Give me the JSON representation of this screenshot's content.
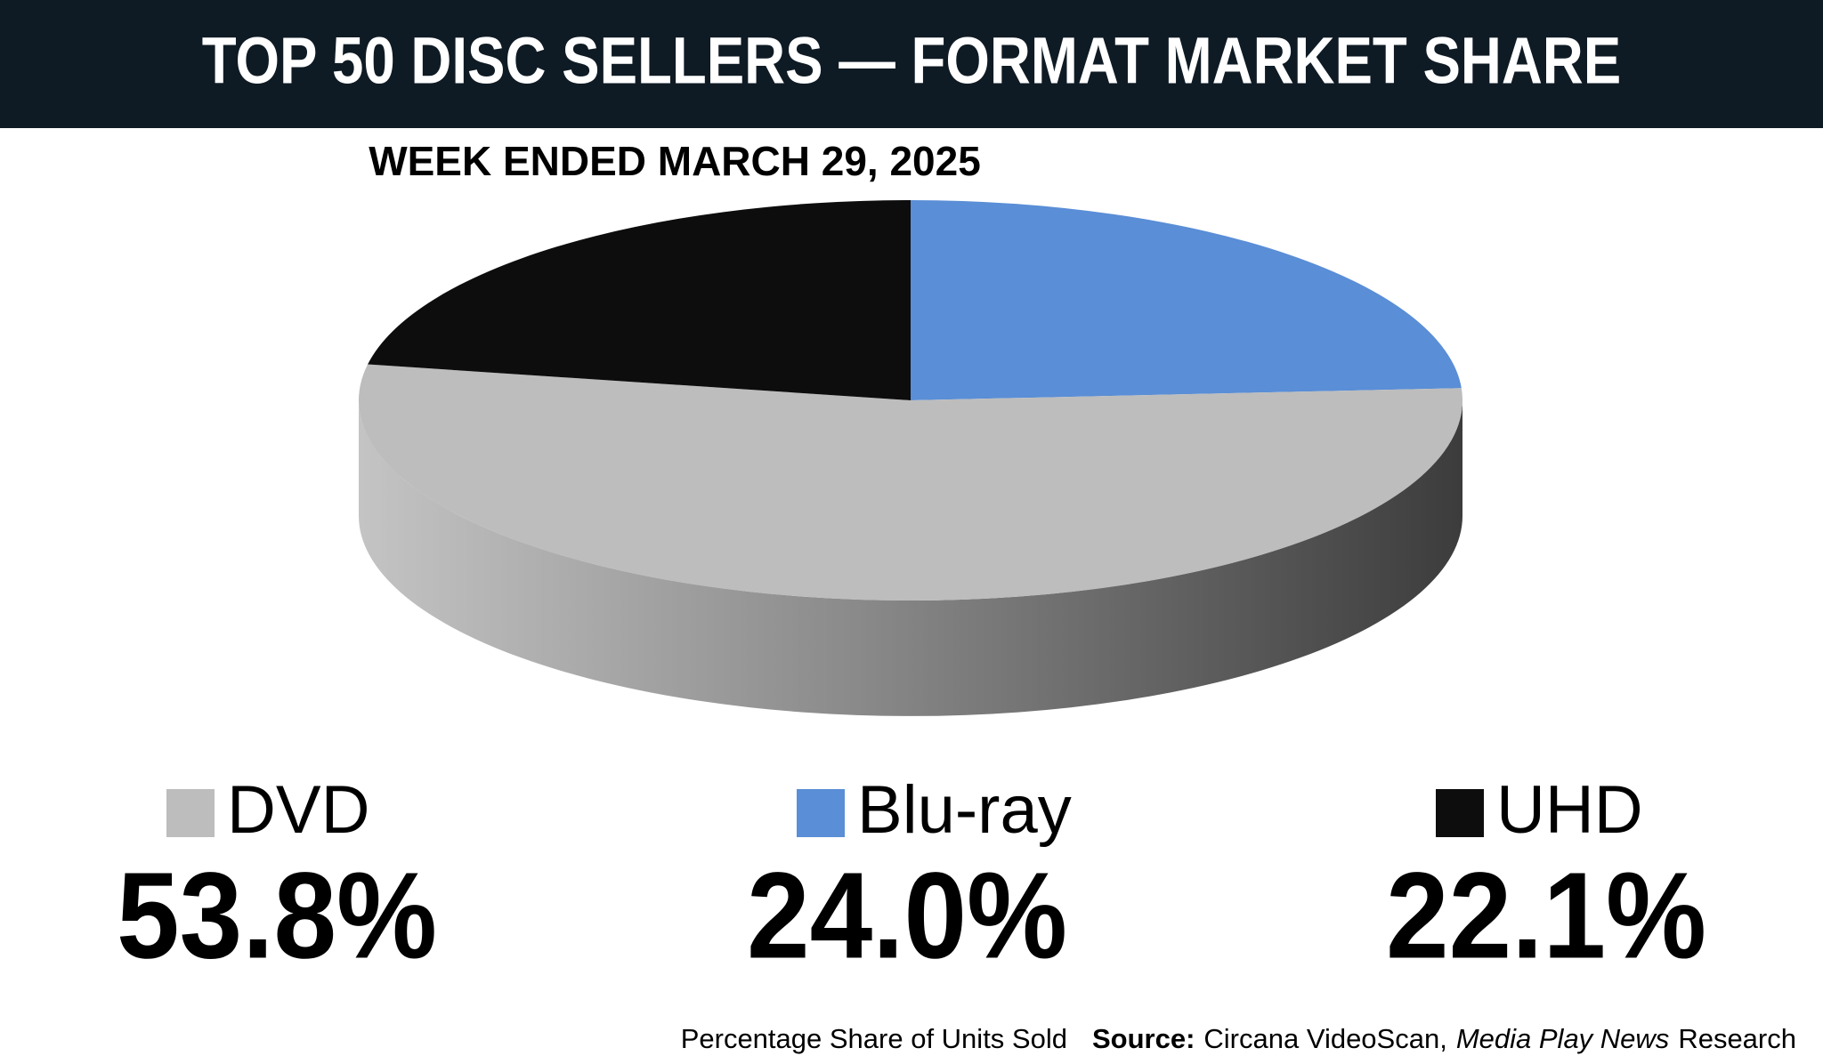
{
  "chart_data": {
    "type": "pie",
    "title": "TOP 50 DISC SELLERS — FORMAT MARKET SHARE",
    "subtitle": "WEEK ENDED MARCH 29, 2025",
    "categories": [
      "DVD",
      "Blu-ray",
      "UHD"
    ],
    "values": [
      53.8,
      24.0,
      22.1
    ],
    "value_labels": [
      "53.8%",
      "24.0%",
      "22.1%"
    ],
    "colors": [
      "#bdbdbd",
      "#5a8ed6",
      "#0d0d0d"
    ],
    "footer": {
      "note": "Percentage Share of Units Sold",
      "source_label": "Source:",
      "source": "Circana VideoScan,",
      "publication": "Media Play News",
      "suffix": "Research"
    }
  }
}
